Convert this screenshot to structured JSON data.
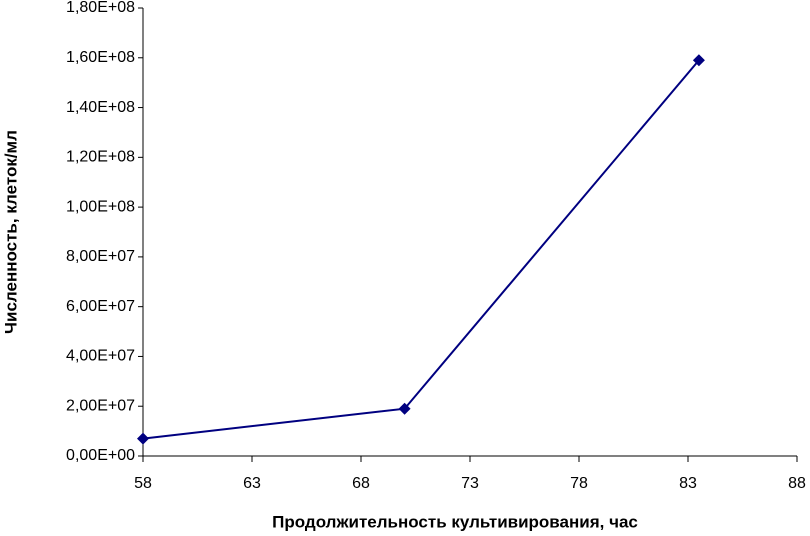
{
  "chart_data": {
    "type": "line",
    "x_label": "Продолжительность культивирования, час",
    "y_label": "Численность, клеток/мл",
    "x": [
      58,
      70,
      83.5
    ],
    "series": [
      {
        "color": "#000080",
        "values": [
          7000000,
          19000000,
          159000000
        ]
      }
    ],
    "xlim": [
      58,
      88
    ],
    "xticks": [
      58,
      63,
      68,
      73,
      78,
      83,
      88
    ],
    "ylim": [
      0,
      180000000
    ],
    "yticks": [
      {
        "value": 0,
        "label": "0,00E+00"
      },
      {
        "value": 20000000,
        "label": "2,00E+07"
      },
      {
        "value": 40000000,
        "label": "4,00E+07"
      },
      {
        "value": 60000000,
        "label": "6,00E+07"
      },
      {
        "value": 80000000,
        "label": "8,00E+07"
      },
      {
        "value": 100000000,
        "label": "1,00E+08"
      },
      {
        "value": 120000000,
        "label": "1,20E+08"
      },
      {
        "value": 140000000,
        "label": "1,40E+08"
      },
      {
        "value": 160000000,
        "label": "1,60E+08"
      },
      {
        "value": 180000000,
        "label": "1,80E+08"
      }
    ],
    "grid": false
  }
}
